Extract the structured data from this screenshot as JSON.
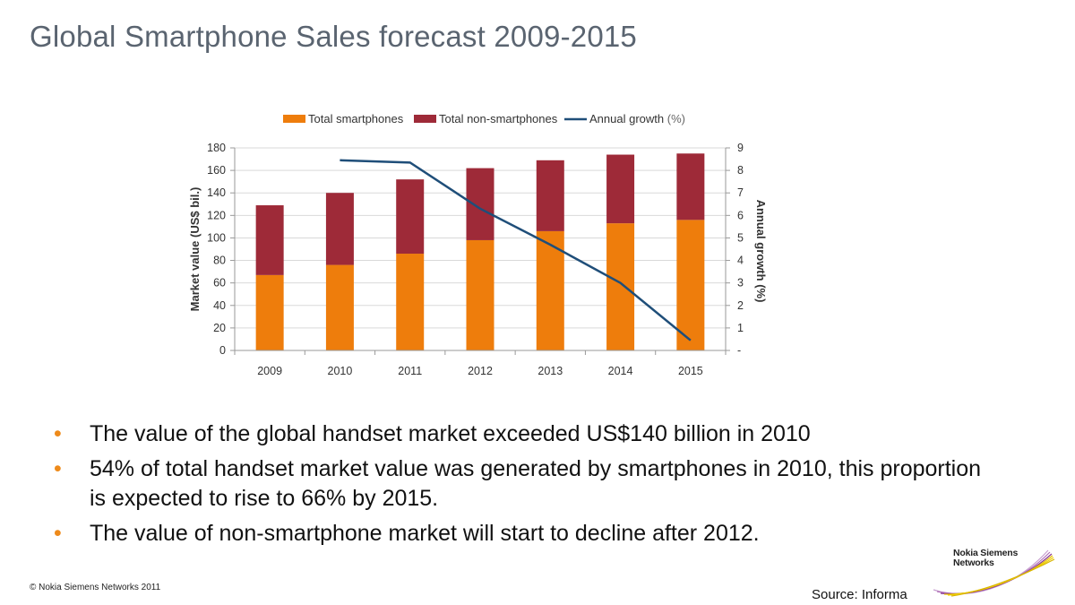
{
  "slide": {
    "title": "Global Smartphone Sales forecast 2009-2015",
    "bullets": [
      "The value of the global handset market exceeded US$140  billion in 2010",
      "54% of total handset market value was generated by smartphones in 2010, this proportion is expected to rise to 66% by 2015.",
      "The value of non-smartphone market will start to decline after 2012."
    ],
    "bullet_glyph": "•",
    "copyright": "© Nokia Siemens Networks 2011",
    "source": "Source: Informa",
    "logo": {
      "line1": "Nokia Siemens",
      "line2": "Networks"
    }
  },
  "colors": {
    "smartphones": "#ee7d0c",
    "non_smartphones": "#9e2a38",
    "growth_line": "#1f4e79",
    "bullet": "#ee8a1a",
    "title": "#5a6470"
  },
  "chart_data": {
    "type": "bar",
    "stacked": true,
    "categories": [
      "2009",
      "2010",
      "2011",
      "2012",
      "2013",
      "2014",
      "2015"
    ],
    "series": [
      {
        "name": "Total smartphones",
        "values": [
          67,
          76,
          86,
          98,
          106,
          113,
          116
        ]
      },
      {
        "name": "Total non-smartphones",
        "values": [
          62,
          64,
          66,
          64,
          63,
          61,
          59
        ]
      }
    ],
    "line_series": {
      "name": "Annual growth",
      "unit_label": "(%)",
      "values": [
        null,
        8.45,
        8.35,
        6.3,
        4.7,
        3.0,
        0.45
      ]
    },
    "ylabel": "Market value (US$ bil.)",
    "y2label": "Annual growth (%)",
    "ylim": [
      0,
      180
    ],
    "yticks": [
      "0",
      "20",
      "40",
      "60",
      "80",
      "100",
      "120",
      "140",
      "160",
      "180"
    ],
    "y2lim": [
      0,
      9
    ],
    "y2ticks": [
      "-",
      "1",
      "2",
      "3",
      "4",
      "5",
      "6",
      "7",
      "8",
      "9"
    ],
    "grid": true,
    "legend": "top"
  }
}
